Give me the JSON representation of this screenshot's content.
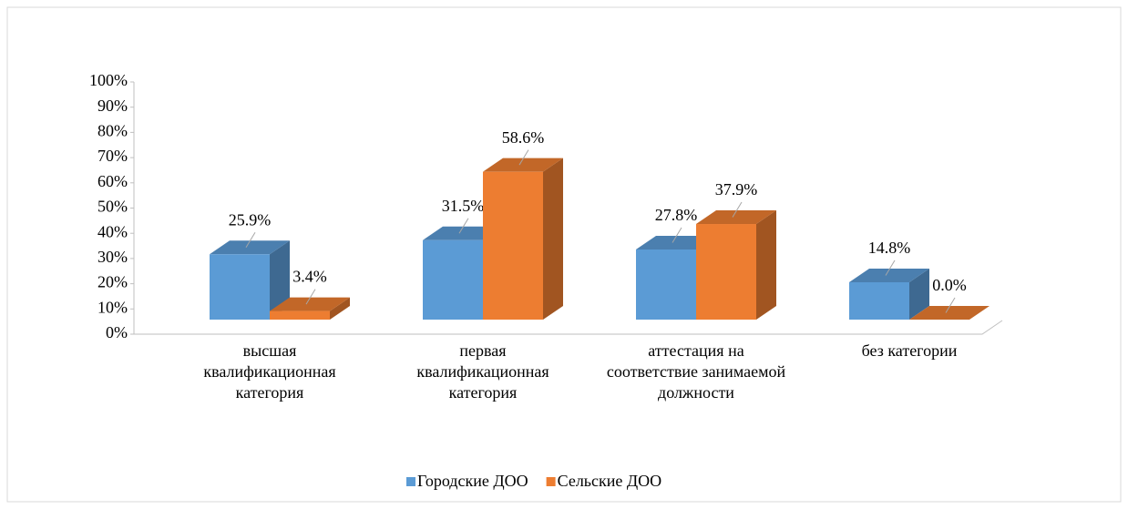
{
  "chart_data": {
    "type": "bar3d",
    "categories": [
      "высшая квалификационная категория",
      "первая квалификационная категория",
      "аттестация на соответствие занимаемой должности",
      "без категории"
    ],
    "series": [
      {
        "name": "Городские ДОО",
        "color": "#5b9bd5",
        "values": [
          25.9,
          31.5,
          27.8,
          14.8
        ],
        "value_labels": [
          "25.9%",
          "31.5%",
          "27.8%",
          "14.8%"
        ]
      },
      {
        "name": "Сельские ДОО",
        "color": "#ed7d31",
        "values": [
          3.4,
          58.6,
          37.9,
          0.0
        ],
        "value_labels": [
          "3.4%",
          "58.6%",
          "37.9%",
          "0.0%"
        ]
      }
    ],
    "ylim": [
      0,
      100
    ],
    "yticks": [
      {
        "value": 0,
        "label": "0%"
      },
      {
        "value": 10,
        "label": "10%"
      },
      {
        "value": 20,
        "label": "20%"
      },
      {
        "value": 30,
        "label": "30%"
      },
      {
        "value": 40,
        "label": "40%"
      },
      {
        "value": 50,
        "label": "50%"
      },
      {
        "value": 60,
        "label": "60%"
      },
      {
        "value": 70,
        "label": "70%"
      },
      {
        "value": 80,
        "label": "80%"
      },
      {
        "value": 90,
        "label": "90%"
      },
      {
        "value": 100,
        "label": "100%"
      }
    ],
    "legend": "bottom"
  }
}
